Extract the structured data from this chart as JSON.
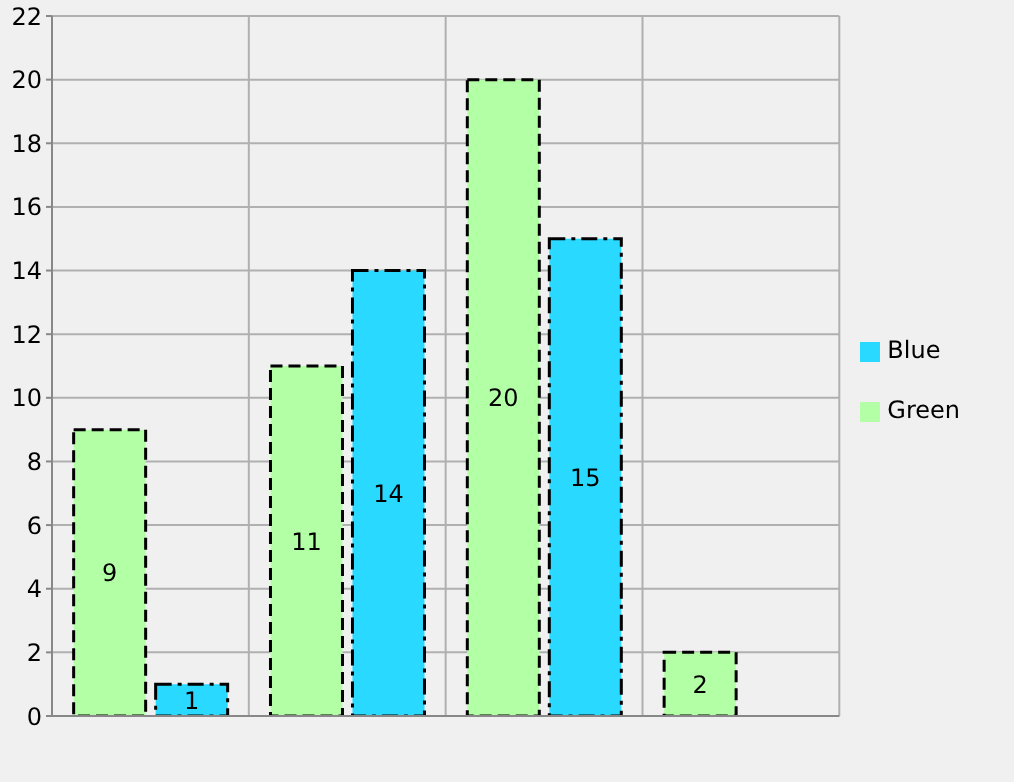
{
  "chart_data": {
    "type": "bar",
    "categories": [
      null,
      null,
      null,
      null
    ],
    "series": [
      {
        "name": "Green",
        "color": "#b3ffa6",
        "values": [
          9,
          11,
          20,
          2
        ]
      },
      {
        "name": "Blue",
        "color": "#29d9ff",
        "values": [
          1,
          14,
          15,
          null
        ]
      }
    ],
    "ylim": [
      0,
      22
    ],
    "yticks": [
      0,
      2,
      4,
      6,
      8,
      10,
      12,
      14,
      16,
      18,
      20,
      22
    ],
    "grid": true,
    "legend": "right",
    "data_labels": true
  }
}
